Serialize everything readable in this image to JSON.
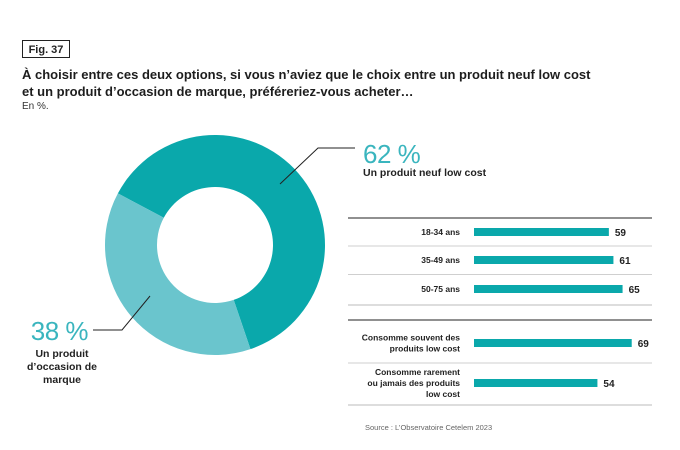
{
  "figure": {
    "label": "Fig. 37",
    "title_line1": "À choisir entre ces deux options, si vous n’aviez que le choix entre un produit neuf low cost",
    "title_line2": "et un produit d’occasion de marque, préféreriez-vous acheter…",
    "subtitle": "En %.",
    "source": "Source : L’Observatoire Cetelem 2023"
  },
  "chart_data": [
    {
      "type": "pie",
      "donut": true,
      "slices": [
        {
          "name": "Un produit neuf low cost",
          "value": 62,
          "label": "62 %",
          "color": "#0aa8ab"
        },
        {
          "name": "Un produit d’occasion de marque",
          "value": 38,
          "label": "38 %",
          "color": "#6ac5cd"
        }
      ],
      "label_lines": {
        "neuf": [
          "Un produit neuf low cost"
        ],
        "occasion": [
          "Un produit",
          "d’occasion de",
          "marque"
        ]
      }
    },
    {
      "type": "bar",
      "orientation": "horizontal",
      "value_max": 70,
      "bar_color": "#0aa8ab",
      "groups": [
        {
          "rows": [
            {
              "label_lines": [
                "18-34 ans"
              ],
              "value": 59
            },
            {
              "label_lines": [
                "35-49 ans"
              ],
              "value": 61
            },
            {
              "label_lines": [
                "50-75 ans"
              ],
              "value": 65
            }
          ]
        },
        {
          "rows": [
            {
              "label_lines": [
                "Consomme souvent des",
                "produits low cost"
              ],
              "value": 69
            },
            {
              "label_lines": [
                "Consomme rarement",
                "ou jamais des produits",
                "low cost"
              ],
              "value": 54
            }
          ]
        }
      ]
    }
  ]
}
